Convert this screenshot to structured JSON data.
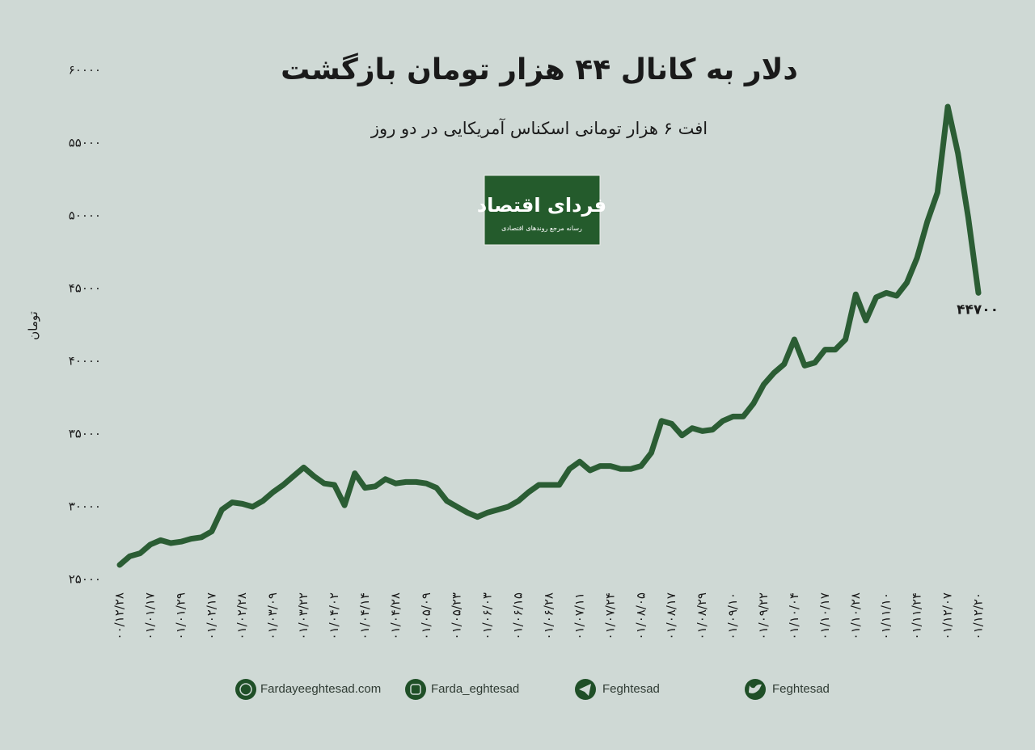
{
  "chart_data": {
    "type": "line",
    "title": "دلار به کانال ۴۴ هزار تومان بازگشت",
    "subtitle": "افت ۶ هزار تومانی اسکناس آمریکایی در دو روز",
    "y_label": "تومان",
    "logo": {
      "name": "فردای اقتصاد",
      "tagline": "رسانه مرجع روندهای اقتصادی"
    },
    "footer": [
      "Fardayeeghtesad.com",
      "Farda_eghtesad",
      "Feghtesad",
      "Feghtesad"
    ],
    "categories": [
      "۰۰/۱۲/۲۸",
      null,
      null,
      "۰۱/۰۱/۱۷",
      null,
      null,
      "۰۱/۰۱/۲۹",
      null,
      null,
      "۰۱/۰۲/۱۷",
      null,
      null,
      "۰۱/۰۲/۲۸",
      null,
      null,
      "۰۱/۰۳/۰۹",
      null,
      null,
      "۰۱/۰۳/۲۲",
      null,
      null,
      "۰۱/۰۴/۰۲",
      null,
      null,
      "۰۱/۰۴/۱۴",
      null,
      null,
      "۰۱/۰۴/۲۸",
      null,
      null,
      "۰۱/۰۵/۰۹",
      null,
      null,
      "۰۱/۰۵/۲۳",
      null,
      null,
      "۰۱/۰۶/۰۳",
      null,
      null,
      "۰۱/۰۶/۱۵",
      null,
      null,
      "۰۱/۰۶/۲۸",
      null,
      null,
      "۰۱/۰۷/۱۱",
      null,
      null,
      "۰۱/۰۷/۲۴",
      null,
      null,
      "۰۱/۰۸/۰۵",
      null,
      null,
      "۰۱/۰۸/۱۷",
      null,
      null,
      "۰۱/۰۸/۲۹",
      null,
      null,
      "۰۱/۰۹/۱۰",
      null,
      null,
      "۰۱/۰۹/۲۲",
      null,
      null,
      "۰۱/۱۰/۰۴",
      null,
      null,
      "۰۱/۱۰/۱۷",
      null,
      null,
      "۰۱/۱۰/۲۸",
      null,
      null,
      "۰۱/۱۱/۱۰",
      null,
      null,
      "۰۱/۱۱/۲۴",
      null,
      null,
      "۰۱/۱۲/۰۷",
      null,
      null,
      "۰۱/۱۲/۲۰"
    ],
    "series": [
      {
        "color": "#2b5d34",
        "values": [
          26000,
          26600,
          26800,
          27400,
          27700,
          27500,
          27600,
          27800,
          27900,
          28300,
          29800,
          30300,
          30200,
          30000,
          30400,
          31000,
          31500,
          32100,
          32700,
          32100,
          31600,
          31500,
          30100,
          32300,
          31300,
          31400,
          31900,
          31600,
          31700,
          31700,
          31600,
          31300,
          30400,
          30000,
          29600,
          29300,
          29600,
          29800,
          30000,
          30400,
          31000,
          31500,
          31500,
          31500,
          32600,
          33100,
          32500,
          32800,
          32800,
          32600,
          32600,
          32800,
          33700,
          35900,
          35700,
          34900,
          35400,
          35200,
          35300,
          35900,
          36200,
          36200,
          37100,
          38400,
          39200,
          39800,
          41500,
          39700,
          39900,
          40800,
          40800,
          41500,
          44600,
          42800,
          44400,
          44700,
          44500,
          45400,
          47100,
          49600,
          51600,
          57500,
          54300,
          49900,
          44700
        ],
        "value_labels": [
          null,
          null,
          null,
          null,
          null,
          null,
          null,
          null,
          null,
          null,
          null,
          null,
          null,
          null,
          null,
          null,
          null,
          null,
          null,
          null,
          null,
          null,
          null,
          null,
          null,
          null,
          null,
          null,
          null,
          null,
          null,
          null,
          null,
          null,
          null,
          null,
          null,
          null,
          null,
          null,
          null,
          null,
          null,
          null,
          null,
          null,
          null,
          null,
          null,
          null,
          null,
          null,
          null,
          null,
          null,
          null,
          null,
          null,
          null,
          null,
          null,
          null,
          null,
          null,
          null,
          null,
          null,
          null,
          null,
          null,
          null,
          null,
          null,
          null,
          null,
          null,
          null,
          null,
          null,
          null,
          null,
          null,
          null,
          null,
          "۴۴۷۰۰"
        ]
      }
    ],
    "ylim": [
      25000,
      60000
    ],
    "yticks": [
      {
        "value": 25000,
        "label": "۲۵۰۰۰"
      },
      {
        "value": 30000,
        "label": "۳۰۰۰۰"
      },
      {
        "value": 35000,
        "label": "۳۵۰۰۰"
      },
      {
        "value": 40000,
        "label": "۴۰۰۰۰"
      },
      {
        "value": 45000,
        "label": "۴۵۰۰۰"
      },
      {
        "value": 50000,
        "label": "۵۰۰۰۰"
      },
      {
        "value": 55000,
        "label": "۵۵۰۰۰"
      },
      {
        "value": 60000,
        "label": "۶۰۰۰۰"
      }
    ],
    "grid": false
  }
}
